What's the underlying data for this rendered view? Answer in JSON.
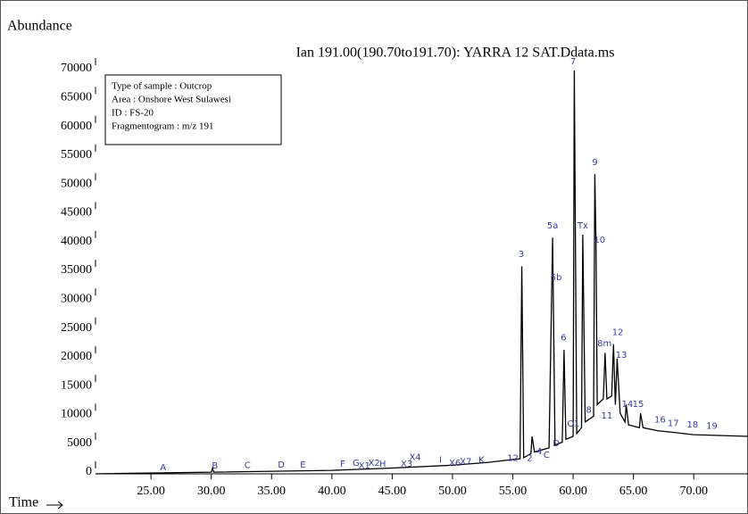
{
  "chart_data": {
    "type": "line",
    "y_axis_label": "Abundance",
    "x_axis_label": "Time",
    "title": "Ian 191.00(190.70to191.70): YARRA 12 SAT.Ddata.ms",
    "info_box": [
      "Type of sample : Outcrop",
      "Area : Onshore West Sulawesi",
      "ID : FS-20",
      "Fragmentogram : m/z 191"
    ],
    "color": "#000000",
    "label_color": "#3a3aa0",
    "xlim": [
      20.4,
      74.5
    ],
    "ylim": [
      0,
      70000
    ],
    "xticks": [
      {
        "value": 25,
        "label": "25.00"
      },
      {
        "value": 30,
        "label": "30.00"
      },
      {
        "value": 35,
        "label": "35.00"
      },
      {
        "value": 40,
        "label": "40.00"
      },
      {
        "value": 45,
        "label": "45.00"
      },
      {
        "value": 50,
        "label": "50.00"
      },
      {
        "value": 55,
        "label": "55.00"
      },
      {
        "value": 60,
        "label": "60.00"
      },
      {
        "value": 65,
        "label": "65.00"
      },
      {
        "value": 70,
        "label": "70.00"
      }
    ],
    "yticks": [
      0,
      5000,
      10000,
      15000,
      20000,
      25000,
      30000,
      35000,
      40000,
      45000,
      50000,
      55000,
      60000,
      65000,
      70000
    ],
    "x": [
      20.4,
      30,
      30.1,
      30.2,
      40,
      45,
      50,
      53,
      55,
      55.6,
      55.75,
      55.9,
      56.5,
      56.6,
      56.8,
      58.0,
      58.3,
      58.5,
      59.1,
      59.25,
      59.4,
      60.0,
      60.1,
      60.3,
      60.7,
      60.8,
      61.0,
      61.7,
      61.8,
      61.9,
      62.0,
      62.5,
      62.65,
      62.8,
      63.2,
      63.35,
      63.5,
      63.65,
      63.9,
      64.3,
      64.4,
      64.6,
      65.5,
      65.6,
      65.8,
      67,
      70,
      74.5
    ],
    "values": [
      0,
      300,
      1000,
      300,
      600,
      1000,
      1500,
      2000,
      2500,
      2600,
      36000,
      2800,
      3500,
      6500,
      3800,
      4500,
      41000,
      5000,
      5500,
      21500,
      6000,
      6500,
      70000,
      7000,
      8000,
      41500,
      9000,
      10000,
      52000,
      40000,
      12000,
      13000,
      21000,
      13000,
      13500,
      22500,
      12000,
      20000,
      10500,
      9000,
      12000,
      8500,
      8000,
      10500,
      8000,
      7500,
      6800,
      6500
    ],
    "annotations": [
      {
        "text": "A",
        "x": 26,
        "y": 0
      },
      {
        "text": "B",
        "x": 30.3,
        "y": 300
      },
      {
        "text": "C",
        "x": 33,
        "y": 400
      },
      {
        "text": "D",
        "x": 35.8,
        "y": 450
      },
      {
        "text": "E",
        "x": 37.6,
        "y": 500
      },
      {
        "text": "F",
        "x": 40.9,
        "y": 600
      },
      {
        "text": "G",
        "x": 42,
        "y": 800
      },
      {
        "text": "X1",
        "x": 42.7,
        "y": 300
      },
      {
        "text": "X2",
        "x": 43.5,
        "y": 800
      },
      {
        "text": "H",
        "x": 44.2,
        "y": 600
      },
      {
        "text": "X3",
        "x": 46.2,
        "y": 600
      },
      {
        "text": "X4",
        "x": 46.9,
        "y": 1800
      },
      {
        "text": "I",
        "x": 49,
        "y": 1300
      },
      {
        "text": "X6",
        "x": 50.2,
        "y": 800
      },
      {
        "text": "X7",
        "x": 51.1,
        "y": 1000
      },
      {
        "text": "K",
        "x": 52.4,
        "y": 1300
      },
      {
        "text": "12",
        "x": 55,
        "y": 1600
      },
      {
        "text": "2",
        "x": 56.4,
        "y": 1600
      },
      {
        "text": "4",
        "x": 57.2,
        "y": 2800
      },
      {
        "text": "C",
        "x": 57.8,
        "y": 2200
      },
      {
        "text": "D",
        "x": 58.6,
        "y": 4200
      },
      {
        "text": "O",
        "x": 59.8,
        "y": 7600
      },
      {
        "text": "1",
        "x": 60.3,
        "y": 7600
      },
      {
        "text": "8",
        "x": 61.3,
        "y": 10000
      },
      {
        "text": "11",
        "x": 62.8,
        "y": 9000
      },
      {
        "text": "14",
        "x": 64.5,
        "y": 11000
      },
      {
        "text": "15",
        "x": 65.4,
        "y": 11000
      },
      {
        "text": "16",
        "x": 67.2,
        "y": 8300
      },
      {
        "text": "17",
        "x": 68.3,
        "y": 7700
      },
      {
        "text": "18",
        "x": 69.9,
        "y": 7400
      },
      {
        "text": "19",
        "x": 71.5,
        "y": 7200
      },
      {
        "text": "3",
        "x": 55.7,
        "y": 37000
      },
      {
        "text": "5a",
        "x": 58.3,
        "y": 42000
      },
      {
        "text": "5b",
        "x": 58.6,
        "y": 33000
      },
      {
        "text": "6",
        "x": 59.2,
        "y": 22500
      },
      {
        "text": "7",
        "x": 60.0,
        "y": 70500
      },
      {
        "text": "Tx",
        "x": 60.8,
        "y": 42000
      },
      {
        "text": "9",
        "x": 61.8,
        "y": 53000
      },
      {
        "text": "10",
        "x": 62.2,
        "y": 39500
      },
      {
        "text": "8m",
        "x": 62.6,
        "y": 21500
      },
      {
        "text": "12",
        "x": 63.7,
        "y": 23500
      },
      {
        "text": "13",
        "x": 64.0,
        "y": 19500
      }
    ]
  }
}
